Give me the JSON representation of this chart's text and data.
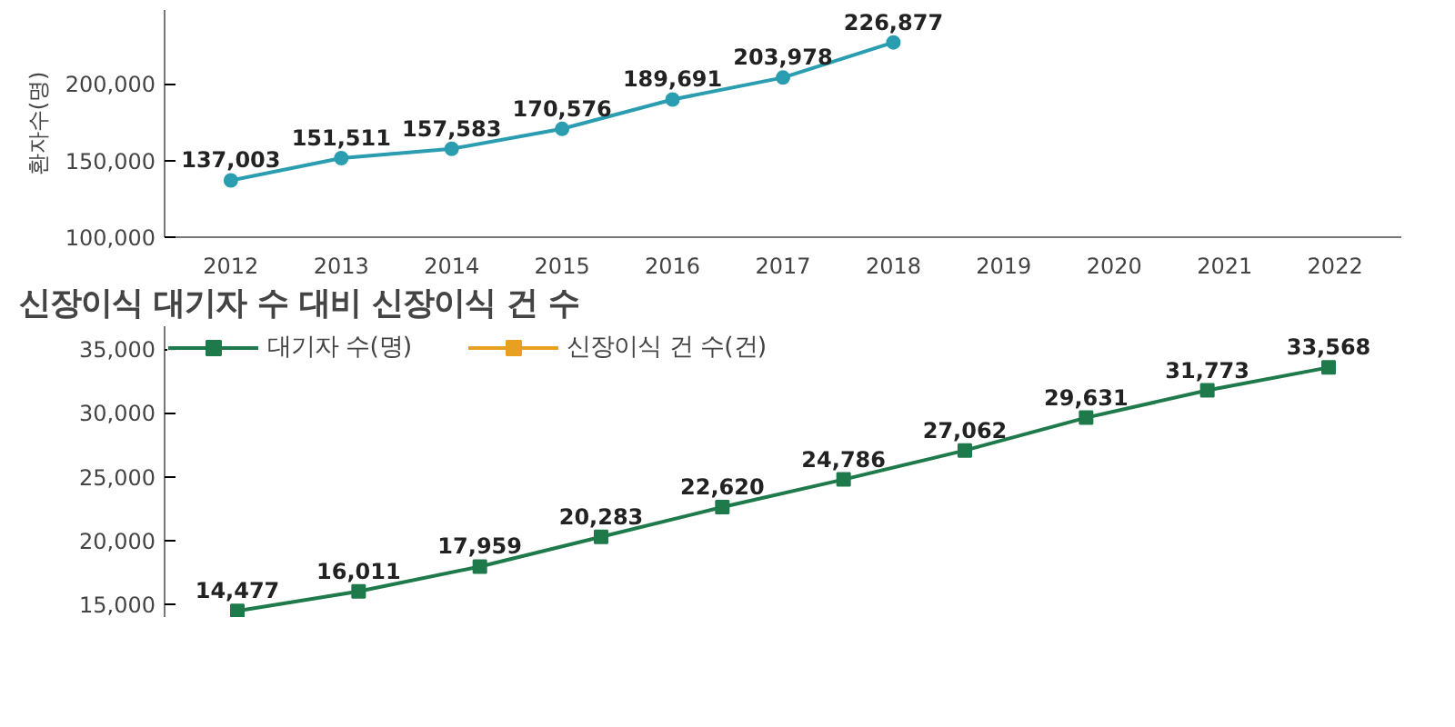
{
  "chart_data": [
    {
      "type": "line",
      "ylabel": "환자수(명)",
      "categories": [
        "2012",
        "2013",
        "2014",
        "2015",
        "2016",
        "2017",
        "2018",
        "2019",
        "2020",
        "2021",
        "2022"
      ],
      "series": [
        {
          "color": "#2a9db0",
          "values": [
            137003,
            151511,
            157583,
            170576,
            189691,
            203978,
            226877,
            null,
            null,
            null,
            null
          ],
          "value_labels": [
            "137,003",
            "151,511",
            "157,583",
            "170,576",
            "189,691",
            "203,978",
            "226,877",
            null,
            null,
            null,
            null
          ]
        }
      ],
      "ylim": [
        100000,
        248000
      ],
      "yticks": [
        {
          "value": 100000,
          "label": "100,000"
        },
        {
          "value": 150000,
          "label": "150,000"
        },
        {
          "value": 200000,
          "label": "200,000"
        }
      ],
      "marker": "circle",
      "line_style": "solid",
      "grid": false
    },
    {
      "type": "line",
      "title": "신장이식 대기자 수 대비 신장이식 건 수",
      "categories": [
        null,
        null,
        null,
        null,
        null,
        null,
        null,
        null,
        null,
        null
      ],
      "series": [
        {
          "name": "대기자 수(명)",
          "color": "#1e7a4a",
          "values": [
            14477,
            16011,
            17959,
            20283,
            22620,
            24786,
            27062,
            29631,
            31773,
            33568
          ],
          "value_labels": [
            "14,477",
            "16,011",
            "17,959",
            "20,283",
            "22,620",
            "24,786",
            "27,062",
            "29,631",
            "31,773",
            "33,568"
          ]
        },
        {
          "name": "신장이식 건 수(건)",
          "color": "#e8a020",
          "values": [
            null,
            null,
            null,
            null,
            null,
            null,
            null,
            null,
            null,
            null
          ]
        }
      ],
      "ylim": [
        14000,
        36800
      ],
      "yticks": [
        {
          "value": 15000,
          "label": "15,000"
        },
        {
          "value": 20000,
          "label": "20,000"
        },
        {
          "value": 25000,
          "label": "25,000"
        },
        {
          "value": 30000,
          "label": "30,000"
        },
        {
          "value": 35000,
          "label": "35,000"
        }
      ],
      "marker": "square",
      "line_style": "solid",
      "grid": false,
      "legend": "top left",
      "tick_labels": "y"
    }
  ]
}
